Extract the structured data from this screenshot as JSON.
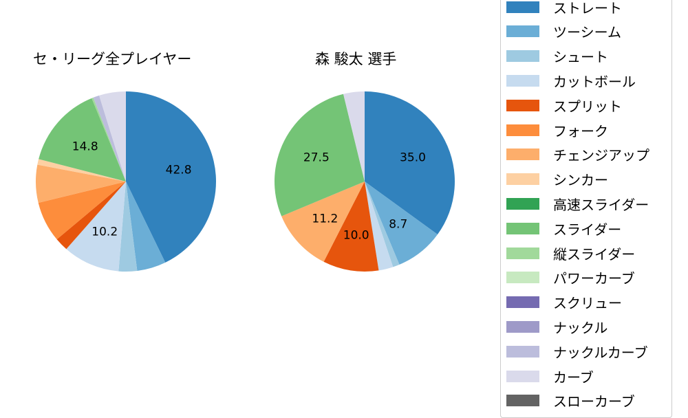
{
  "chart_data": [
    {
      "type": "pie",
      "title": "セ・リーグ全プレイヤー",
      "center": [
        183,
        264
      ],
      "radius": 131,
      "start_angle_deg": 90,
      "direction": "clockwise",
      "categories": [
        "ストレート",
        "ツーシーム",
        "シュート",
        "カットボール",
        "スプリット",
        "フォーク",
        "チェンジアップ",
        "シンカー",
        "高速スライダー",
        "スライダー",
        "縦スライダー",
        "パワーカーブ",
        "スクリュー",
        "ナックル",
        "ナックルカーブ",
        "カーブ",
        "スローカーブ"
      ],
      "values": [
        42.8,
        5.2,
        3.3,
        10.2,
        2.4,
        7.3,
        6.8,
        1.0,
        0.0,
        14.8,
        0.3,
        0.0,
        0.0,
        0.0,
        1.1,
        4.8,
        0.0
      ],
      "data_labels": [
        "42.8",
        "",
        "",
        "10.2",
        "",
        "",
        "",
        "",
        "",
        "14.8",
        "",
        "",
        "",
        "",
        "",
        "",
        ""
      ]
    },
    {
      "type": "pie",
      "title": "森 駿太  選手",
      "center": [
        530,
        264
      ],
      "radius": 131,
      "start_angle_deg": 90,
      "direction": "clockwise",
      "categories": [
        "ストレート",
        "ツーシーム",
        "シュート",
        "カットボール",
        "スプリット",
        "フォーク",
        "チェンジアップ",
        "シンカー",
        "高速スライダー",
        "スライダー",
        "縦スライダー",
        "パワーカーブ",
        "スクリュー",
        "ナックル",
        "ナックルカーブ",
        "カーブ",
        "スローカーブ"
      ],
      "values": [
        35.0,
        8.7,
        1.2,
        2.6,
        10.0,
        0.0,
        11.2,
        0.0,
        0.0,
        27.5,
        0.0,
        0.0,
        0.0,
        0.0,
        0.0,
        3.8,
        0.0
      ],
      "data_labels": [
        "35.0",
        "8.7",
        "",
        "",
        "10.0",
        "",
        "11.2",
        "",
        "",
        "27.5",
        "",
        "",
        "",
        "",
        "",
        "",
        ""
      ]
    }
  ],
  "titles": {
    "left": "セ・リーグ全プレイヤー",
    "right": "森 駿太  選手"
  },
  "legend": {
    "items": [
      {
        "label": "ストレート",
        "color": "#3182bd"
      },
      {
        "label": "ツーシーム",
        "color": "#6baed6"
      },
      {
        "label": "シュート",
        "color": "#9ecae1"
      },
      {
        "label": "カットボール",
        "color": "#c6dbef"
      },
      {
        "label": "スプリット",
        "color": "#e6550d"
      },
      {
        "label": "フォーク",
        "color": "#fd8d3c"
      },
      {
        "label": "チェンジアップ",
        "color": "#fdae6b"
      },
      {
        "label": "シンカー",
        "color": "#fdd0a2"
      },
      {
        "label": "高速スライダー",
        "color": "#31a354"
      },
      {
        "label": "スライダー",
        "color": "#74c476"
      },
      {
        "label": "縦スライダー",
        "color": "#a1d99b"
      },
      {
        "label": "パワーカーブ",
        "color": "#c7e9c0"
      },
      {
        "label": "スクリュー",
        "color": "#756bb1"
      },
      {
        "label": "ナックル",
        "color": "#9e9ac8"
      },
      {
        "label": "ナックルカーブ",
        "color": "#bcbddc"
      },
      {
        "label": "カーブ",
        "color": "#dadaeb"
      },
      {
        "label": "スローカーブ",
        "color": "#636363"
      }
    ]
  }
}
